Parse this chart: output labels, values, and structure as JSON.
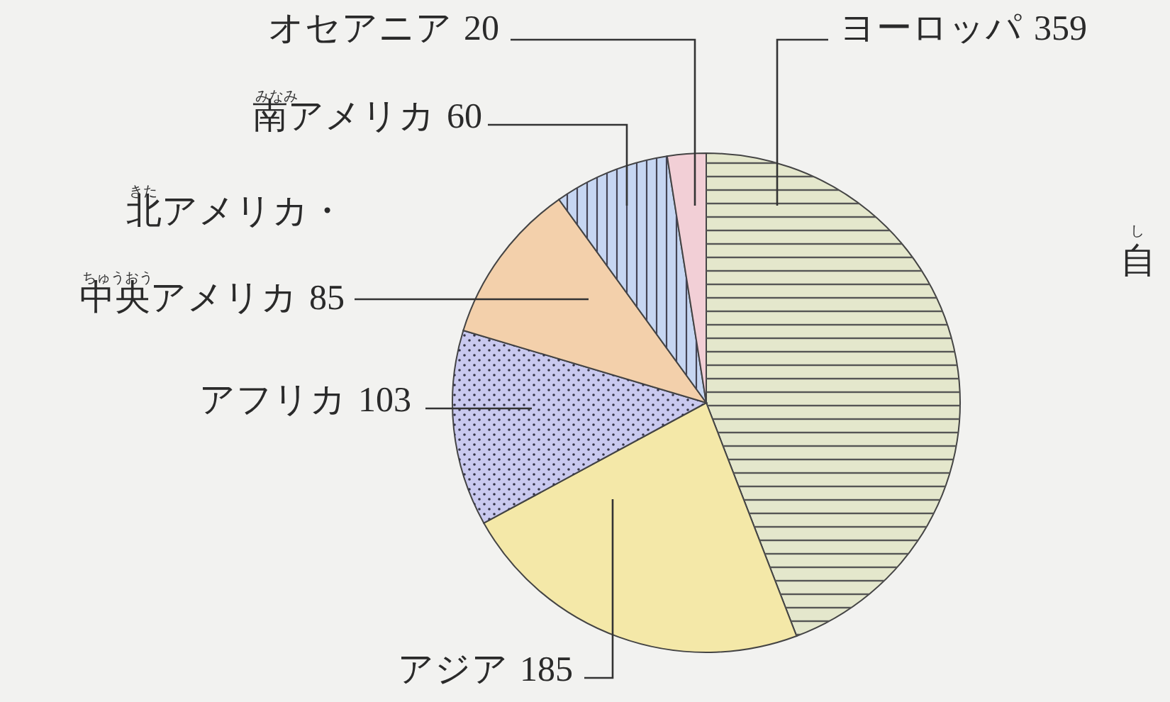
{
  "chart_data": {
    "type": "pie",
    "categories": [
      "ヨーロッパ",
      "アジア",
      "アフリカ",
      "北アメリカ・中央アメリカ",
      "南アメリカ",
      "オセアニア"
    ],
    "values": [
      359,
      185,
      103,
      85,
      60,
      20
    ],
    "colors": [
      "#e4e7cc",
      "#f4e8a8",
      "#c9c9ef",
      "#f3d0ab",
      "#c6d6f2",
      "#f2cfd6"
    ],
    "data_labels": true,
    "annotations": [
      {
        "text": "みなみ",
        "x": "南アメリカ"
      },
      {
        "text": "きた",
        "x": "北アメリカ・中央アメリカ"
      },
      {
        "text": "ちゅうおう",
        "x": "北アメリカ・中央アメリカ"
      },
      "し",
      "自"
    ]
  }
}
